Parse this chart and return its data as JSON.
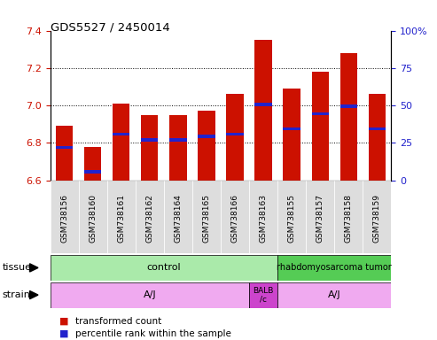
{
  "title": "GDS5527 / 2450014",
  "samples": [
    "GSM738156",
    "GSM738160",
    "GSM738161",
    "GSM738162",
    "GSM738164",
    "GSM738165",
    "GSM738166",
    "GSM738163",
    "GSM738155",
    "GSM738157",
    "GSM738158",
    "GSM738159"
  ],
  "red_values": [
    6.89,
    6.78,
    7.01,
    6.95,
    6.95,
    6.97,
    7.06,
    7.35,
    7.09,
    7.18,
    7.28,
    7.06
  ],
  "blue_values": [
    6.775,
    6.645,
    6.845,
    6.815,
    6.815,
    6.835,
    6.845,
    7.005,
    6.875,
    6.955,
    6.995,
    6.875
  ],
  "ylim": [
    6.6,
    7.4
  ],
  "y2lim": [
    0,
    100
  ],
  "yticks": [
    6.6,
    6.8,
    7.0,
    7.2,
    7.4
  ],
  "y2ticks": [
    0,
    25,
    50,
    75,
    100
  ],
  "bar_bottom": 6.6,
  "bar_width": 0.6,
  "bar_color": "#cc1100",
  "blue_color": "#2222cc",
  "tissue_control_color": "#aaeaaa",
  "tissue_tumor_color": "#55cc55",
  "strain_aj_color": "#f0aaf0",
  "strain_balb_color": "#cc44cc",
  "tissue_row_label": "tissue",
  "strain_row_label": "strain",
  "legend_red": "transformed count",
  "legend_blue": "percentile rank within the sample",
  "xlabel_color": "#cc1100",
  "y2label_color": "#2222cc",
  "xtick_bg_color": "#dddddd"
}
